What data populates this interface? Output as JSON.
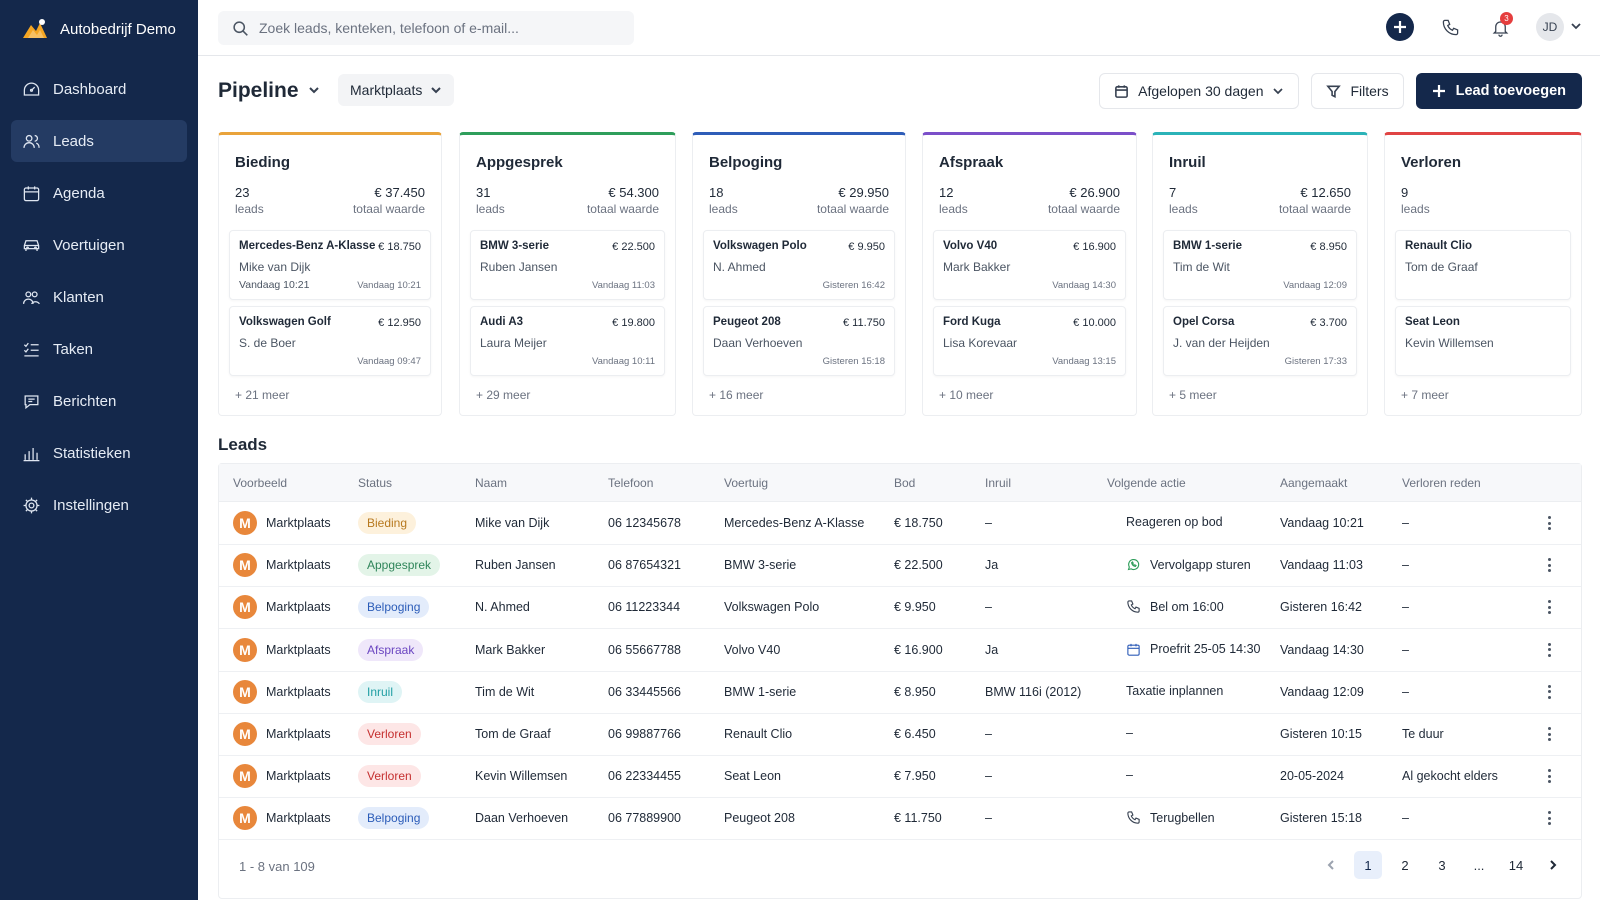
{
  "app": {
    "name": "Autobedrijf Demo"
  },
  "sidebar": {
    "items": [
      {
        "label": "Dashboard",
        "icon": "dashboard-icon",
        "active": false
      },
      {
        "label": "Leads",
        "icon": "users-icon",
        "active": true
      },
      {
        "label": "Agenda",
        "icon": "calendar-icon",
        "active": false
      },
      {
        "label": "Voertuigen",
        "icon": "car-icon",
        "active": false
      },
      {
        "label": "Klanten",
        "icon": "customers-icon",
        "active": false
      },
      {
        "label": "Taken",
        "icon": "tasks-icon",
        "active": false
      },
      {
        "label": "Berichten",
        "icon": "chat-icon",
        "active": false
      },
      {
        "label": "Statistieken",
        "icon": "bar-chart-icon",
        "active": false
      },
      {
        "label": "Instellingen",
        "icon": "gear-icon",
        "active": false
      }
    ]
  },
  "topbar": {
    "search_placeholder": "Zoek leads, kenteken, telefoon of e-mail...",
    "notification_count": "3",
    "user_initials": "JD"
  },
  "header": {
    "title": "Pipeline",
    "source_filter": "Marktplaats",
    "date_range": "Afgelopen 30 dagen",
    "filters_label": "Filters",
    "add_lead_label": "Lead toevoegen"
  },
  "pipeline": {
    "columns": [
      {
        "title": "Bieding",
        "count": "23",
        "count_label": "leads",
        "value": "€ 37.450",
        "value_label": "totaal waarde",
        "color": "#e9a33b",
        "cards": [
          {
            "car": "Mercedes-Benz A-Klasse",
            "price": "€ 18.750",
            "name": "Mike van Dijk",
            "time_left": "Vandaag 10:21",
            "time": "Vandaag 10:21"
          },
          {
            "car": "Volkswagen Golf",
            "price": "€ 12.950",
            "name": "S. de Boer",
            "time_left": "",
            "time": "Vandaag 09:47"
          }
        ],
        "more": "+ 21 meer"
      },
      {
        "title": "Appgesprek",
        "count": "31",
        "count_label": "leads",
        "value": "€ 54.300",
        "value_label": "totaal waarde",
        "color": "#2f9e5b",
        "cards": [
          {
            "car": "BMW 3-serie",
            "price": "€ 22.500",
            "name": "Ruben Jansen",
            "time_left": "",
            "time": "Vandaag 11:03"
          },
          {
            "car": "Audi A3",
            "price": "€ 19.800",
            "name": "Laura Meijer",
            "time_left": "",
            "time": "Vandaag 10:11"
          }
        ],
        "more": "+ 29 meer"
      },
      {
        "title": "Belpoging",
        "count": "18",
        "count_label": "leads",
        "value": "€ 29.950",
        "value_label": "totaal waarde",
        "color": "#2f5db8",
        "cards": [
          {
            "car": "Volkswagen Polo",
            "price": "€ 9.950",
            "name": "N. Ahmed",
            "time_left": "",
            "time": "Gisteren 16:42"
          },
          {
            "car": "Peugeot 208",
            "price": "€ 11.750",
            "name": "Daan Verhoeven",
            "time_left": "",
            "time": "Gisteren 15:18"
          }
        ],
        "more": "+ 16 meer"
      },
      {
        "title": "Afspraak",
        "count": "12",
        "count_label": "leads",
        "value": "€ 26.900",
        "value_label": "totaal waarde",
        "color": "#7b4fc9",
        "cards": [
          {
            "car": "Volvo V40",
            "price": "€ 16.900",
            "name": "Mark Bakker",
            "time_left": "",
            "time": "Vandaag 14:30"
          },
          {
            "car": "Ford Kuga",
            "price": "€ 10.000",
            "name": "Lisa Korevaar",
            "time_left": "",
            "time": "Vandaag 13:15"
          }
        ],
        "more": "+ 10 meer"
      },
      {
        "title": "Inruil",
        "count": "7",
        "count_label": "leads",
        "value": "€ 12.650",
        "value_label": "totaal waarde",
        "color": "#2bb3b8",
        "cards": [
          {
            "car": "BMW 1-serie",
            "price": "€ 8.950",
            "name": "Tim de Wit",
            "time_left": "",
            "time": "Vandaag 12:09"
          },
          {
            "car": "Opel Corsa",
            "price": "€ 3.700",
            "name": "J. van der Heijden",
            "time_left": "",
            "time": "Gisteren 17:33"
          }
        ],
        "more": "+ 5 meer"
      },
      {
        "title": "Verloren",
        "count": "9",
        "count_label": "leads",
        "value": "",
        "value_label": "",
        "color": "#e04444",
        "cards": [
          {
            "car": "Renault Clio",
            "price": "",
            "name": "Tom de Graaf",
            "time_left": "",
            "time": ""
          },
          {
            "car": "Seat Leon",
            "price": "",
            "name": "Kevin Willemsen",
            "time_left": "",
            "time": ""
          }
        ],
        "more": "+ 7 meer"
      }
    ]
  },
  "leads": {
    "title": "Leads",
    "columns": [
      "Voorbeeld",
      "Status",
      "Naam",
      "Telefoon",
      "Voertuig",
      "Bod",
      "Inruil",
      "Volgende actie",
      "Aangemaakt",
      "Verloren reden"
    ],
    "rows": [
      {
        "source": "Marktplaats",
        "status": "Bieding",
        "name": "Mike van Dijk",
        "phone": "06 12345678",
        "vehicle": "Mercedes-Benz A-Klasse",
        "bid": "€ 18.750",
        "tradein": "–",
        "action_icon": "",
        "action": "Reageren op bod",
        "created": "Vandaag 10:21",
        "lost_reason": "–"
      },
      {
        "source": "Marktplaats",
        "status": "Appgesprek",
        "name": "Ruben Jansen",
        "phone": "06 87654321",
        "vehicle": "BMW 3-serie",
        "bid": "€ 22.500",
        "tradein": "Ja",
        "action_icon": "whatsapp-icon",
        "action": "Vervolgapp sturen",
        "created": "Vandaag 11:03",
        "lost_reason": "–"
      },
      {
        "source": "Marktplaats",
        "status": "Belpoging",
        "name": "N. Ahmed",
        "phone": "06 11223344",
        "vehicle": "Volkswagen Polo",
        "bid": "€ 9.950",
        "tradein": "–",
        "action_icon": "phone-icon",
        "action": "Bel om 16:00",
        "created": "Gisteren 16:42",
        "lost_reason": "–"
      },
      {
        "source": "Marktplaats",
        "status": "Afspraak",
        "name": "Mark Bakker",
        "phone": "06 55667788",
        "vehicle": "Volvo V40",
        "bid": "€ 16.900",
        "tradein": "Ja",
        "action_icon": "calendar-icon",
        "action": "Proefrit 25-05 14:30",
        "created": "Vandaag 14:30",
        "lost_reason": "–"
      },
      {
        "source": "Marktplaats",
        "status": "Inruil",
        "name": "Tim de Wit",
        "phone": "06 33445566",
        "vehicle": "BMW 1-serie",
        "bid": "€ 8.950",
        "tradein": "BMW 116i (2012)",
        "action_icon": "",
        "action": "Taxatie inplannen",
        "created": "Vandaag 12:09",
        "lost_reason": "–"
      },
      {
        "source": "Marktplaats",
        "status": "Verloren",
        "name": "Tom de Graaf",
        "phone": "06 99887766",
        "vehicle": "Renault Clio",
        "bid": "€ 6.450",
        "tradein": "–",
        "action_icon": "",
        "action": "–",
        "created": "Gisteren 10:15",
        "lost_reason": "Te duur"
      },
      {
        "source": "Marktplaats",
        "status": "Verloren",
        "name": "Kevin Willemsen",
        "phone": "06 22334455",
        "vehicle": "Seat Leon",
        "bid": "€ 7.950",
        "tradein": "–",
        "action_icon": "",
        "action": "–",
        "created": "20-05-2024",
        "lost_reason": "Al gekocht elders"
      },
      {
        "source": "Marktplaats",
        "status": "Belpoging",
        "name": "Daan Verhoeven",
        "phone": "06 77889900",
        "vehicle": "Peugeot 208",
        "bid": "€ 11.750",
        "tradein": "–",
        "action_icon": "phone-icon",
        "action": "Terugbellen",
        "created": "Gisteren 15:18",
        "lost_reason": "–"
      }
    ],
    "status_colors": {
      "Bieding": {
        "bg": "#fdf1dc",
        "fg": "#b7791f"
      },
      "Appgesprek": {
        "bg": "#e3f4e8",
        "fg": "#2f855a"
      },
      "Belpoging": {
        "bg": "#e3ecfb",
        "fg": "#2b5cb8"
      },
      "Afspraak": {
        "bg": "#efe7fa",
        "fg": "#6b46c1"
      },
      "Inruil": {
        "bg": "#dff4f5",
        "fg": "#1f9ea3"
      },
      "Verloren": {
        "bg": "#fde6e6",
        "fg": "#c53030"
      }
    },
    "range": "1 - 8 van 109",
    "pages": [
      "1",
      "2",
      "3",
      "...",
      "14"
    ],
    "current_page": "1"
  }
}
